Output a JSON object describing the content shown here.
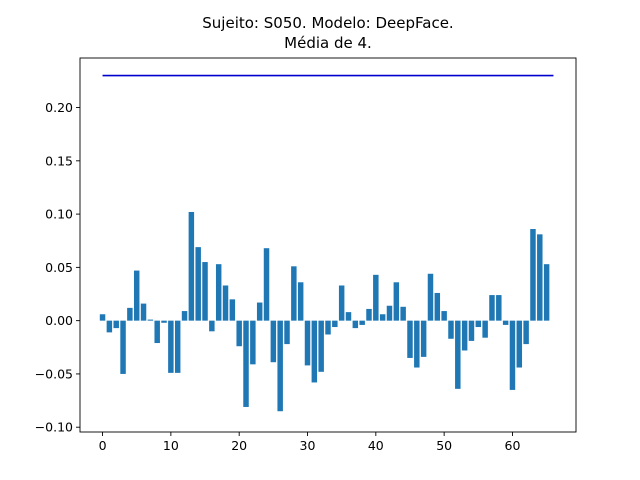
{
  "chart_data": {
    "type": "bar",
    "title_line1": "Sujeito: S050. Modelo: DeepFace.",
    "title_line2": "Média de 4.",
    "xlabel": "",
    "ylabel": "",
    "xlim": [
      -3.3,
      69.3
    ],
    "ylim": [
      -0.1045,
      0.2465
    ],
    "x_ticks": [
      0,
      10,
      20,
      30,
      40,
      50,
      60
    ],
    "y_ticks": [
      -0.1,
      -0.05,
      0.0,
      0.05,
      0.1,
      0.15,
      0.2
    ],
    "y_tick_labels": [
      "−0.10",
      "−0.05",
      "0.00",
      "0.05",
      "0.10",
      "0.15",
      "0.20"
    ],
    "grid": false,
    "bar_color": "#1f77b4",
    "line_color": "#0000cd",
    "bars": [
      0.006,
      -0.011,
      -0.007,
      -0.05,
      0.012,
      0.047,
      0.016,
      0.001,
      -0.021,
      -0.002,
      -0.049,
      -0.049,
      0.009,
      0.102,
      0.069,
      0.055,
      -0.01,
      0.053,
      0.033,
      0.02,
      -0.024,
      -0.081,
      -0.041,
      0.017,
      0.068,
      -0.039,
      -0.085,
      -0.022,
      0.051,
      0.036,
      -0.042,
      -0.058,
      -0.048,
      -0.013,
      -0.006,
      0.033,
      0.008,
      -0.007,
      -0.004,
      0.011,
      0.043,
      0.006,
      0.014,
      0.036,
      0.013,
      -0.035,
      -0.044,
      -0.034,
      0.044,
      0.026,
      0.009,
      -0.017,
      -0.064,
      -0.028,
      -0.019,
      -0.006,
      -0.016,
      0.024,
      0.024,
      -0.004,
      -0.065,
      -0.044,
      -0.022,
      0.086,
      0.081,
      0.053
    ],
    "reference_line": {
      "value": 0.23,
      "x_start": 0,
      "x_end": 66
    }
  }
}
